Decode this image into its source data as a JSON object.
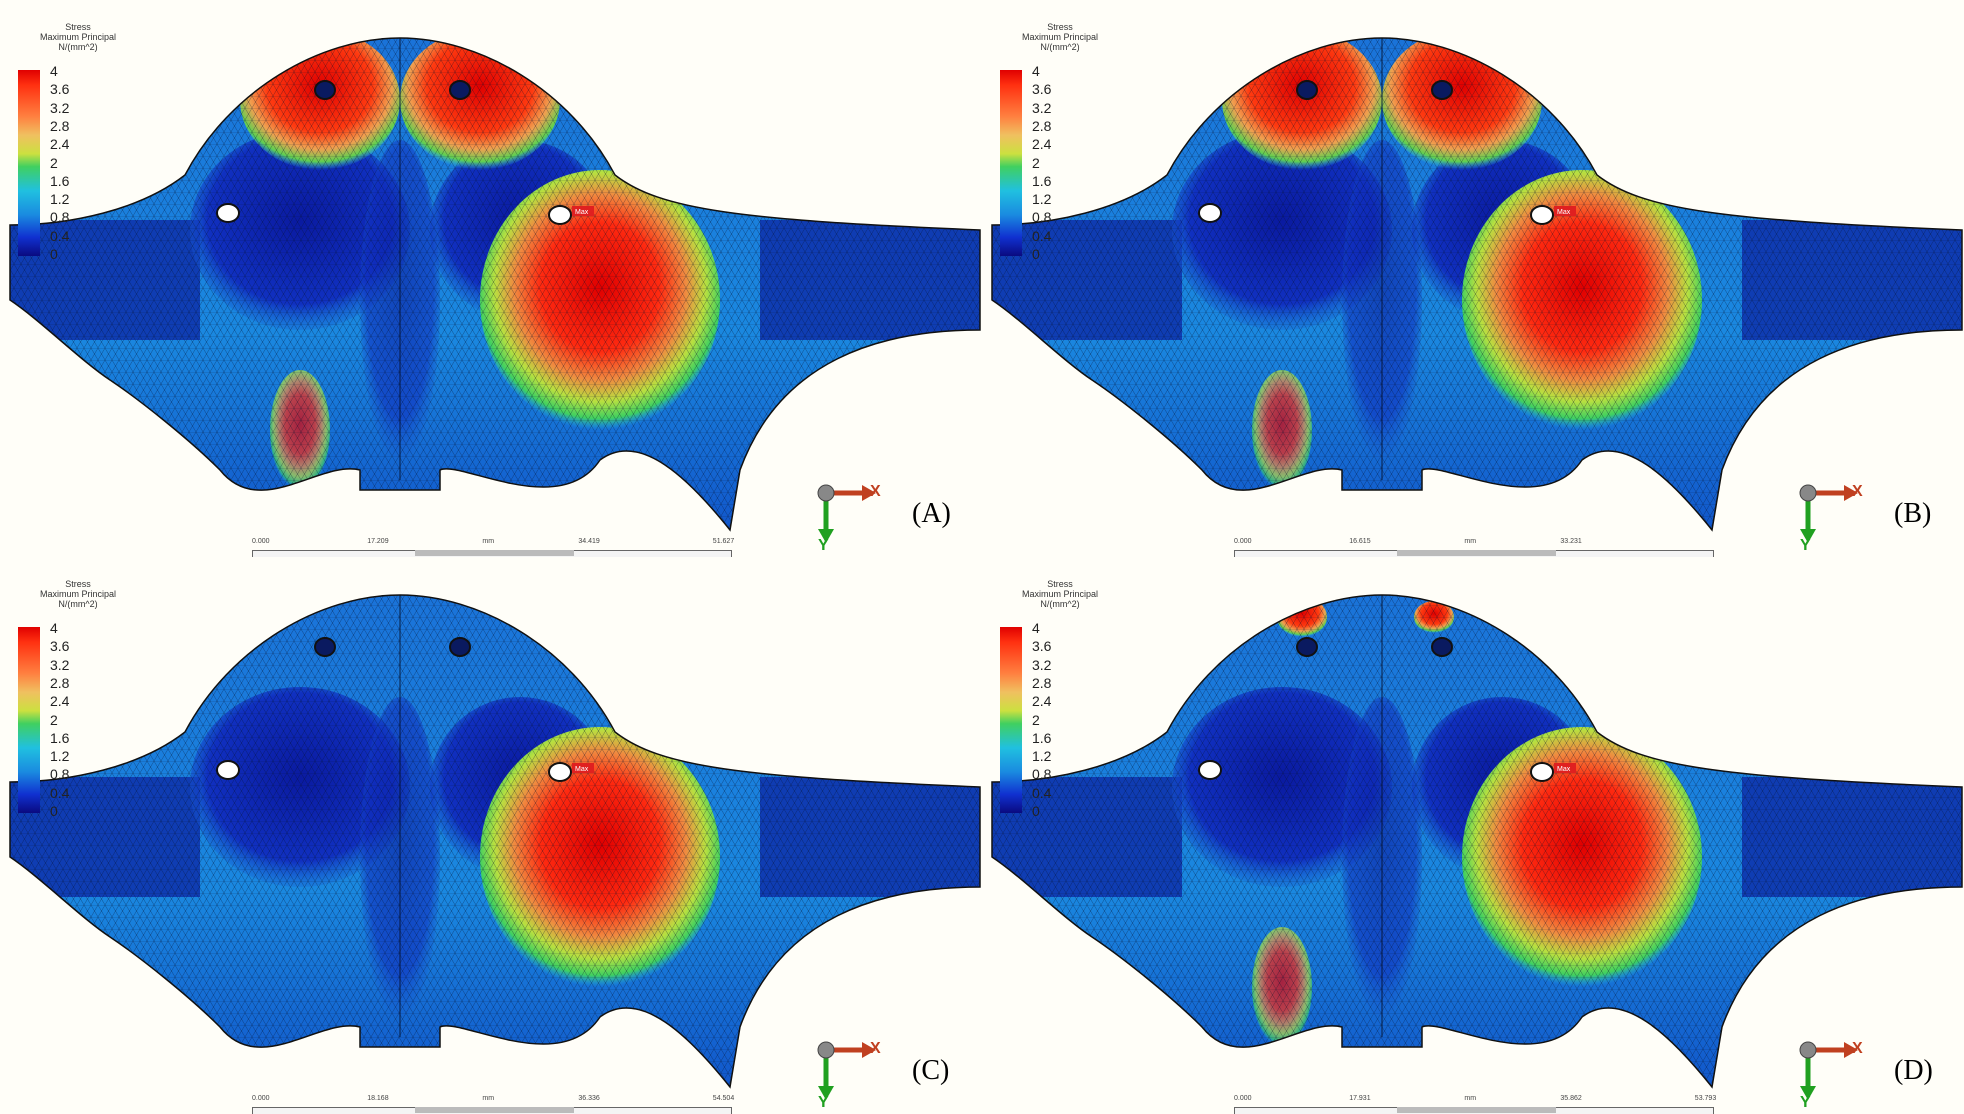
{
  "panels": [
    {
      "id": "A",
      "label": "(A)",
      "legend": {
        "title": [
          "Stress",
          "Maximum Principal",
          "N/(mm^2)"
        ],
        "ticks": [
          "4",
          "3.6",
          "3.2",
          "2.8",
          "2.4",
          "2",
          "1.6",
          "1.2",
          "0.8",
          "0.4",
          "0"
        ]
      },
      "scale": [
        "0.000",
        "17.209",
        "mm",
        "34.419",
        "51.627"
      ],
      "max_tag": "Max",
      "axes": {
        "x": "X",
        "y": "Y"
      }
    },
    {
      "id": "B",
      "label": "(B)",
      "legend": {
        "title": [
          "Stress",
          "Maximum Principal",
          "N/(mm^2)"
        ],
        "ticks": [
          "4",
          "3.6",
          "3.2",
          "2.8",
          "2.4",
          "2",
          "1.6",
          "1.2",
          "0.8",
          "0.4",
          "0"
        ]
      },
      "scale": [
        "0.000",
        "16.615",
        "mm",
        "33.231",
        ""
      ],
      "max_tag": "Max",
      "axes": {
        "x": "X",
        "y": "Y"
      }
    },
    {
      "id": "C",
      "label": "(C)",
      "legend": {
        "title": [
          "Stress",
          "Maximum Principal",
          "N/(mm^2)"
        ],
        "ticks": [
          "4",
          "3.6",
          "3.2",
          "2.8",
          "2.4",
          "2",
          "1.6",
          "1.2",
          "0.8",
          "0.4",
          "0"
        ]
      },
      "scale": [
        "0.000",
        "18.168",
        "mm",
        "36.336",
        "54.504"
      ],
      "max_tag": "Max",
      "axes": {
        "x": "X",
        "y": "Y"
      }
    },
    {
      "id": "D",
      "label": "(D)",
      "legend": {
        "title": [
          "Stress",
          "Maximum Principal",
          "N/(mm^2)"
        ],
        "ticks": [
          "4",
          "3.6",
          "3.2",
          "2.8",
          "2.4",
          "2",
          "1.6",
          "1.2",
          "0.8",
          "0.4",
          "0"
        ]
      },
      "scale": [
        "0.000",
        "17.931",
        "mm",
        "35.862",
        "53.793"
      ],
      "max_tag": "Max",
      "axes": {
        "x": "X",
        "y": "Y"
      }
    }
  ],
  "colors": {
    "low": "#0a1aa0",
    "mid": "#20a8e0",
    "green": "#40d060",
    "high": "#e01010"
  }
}
